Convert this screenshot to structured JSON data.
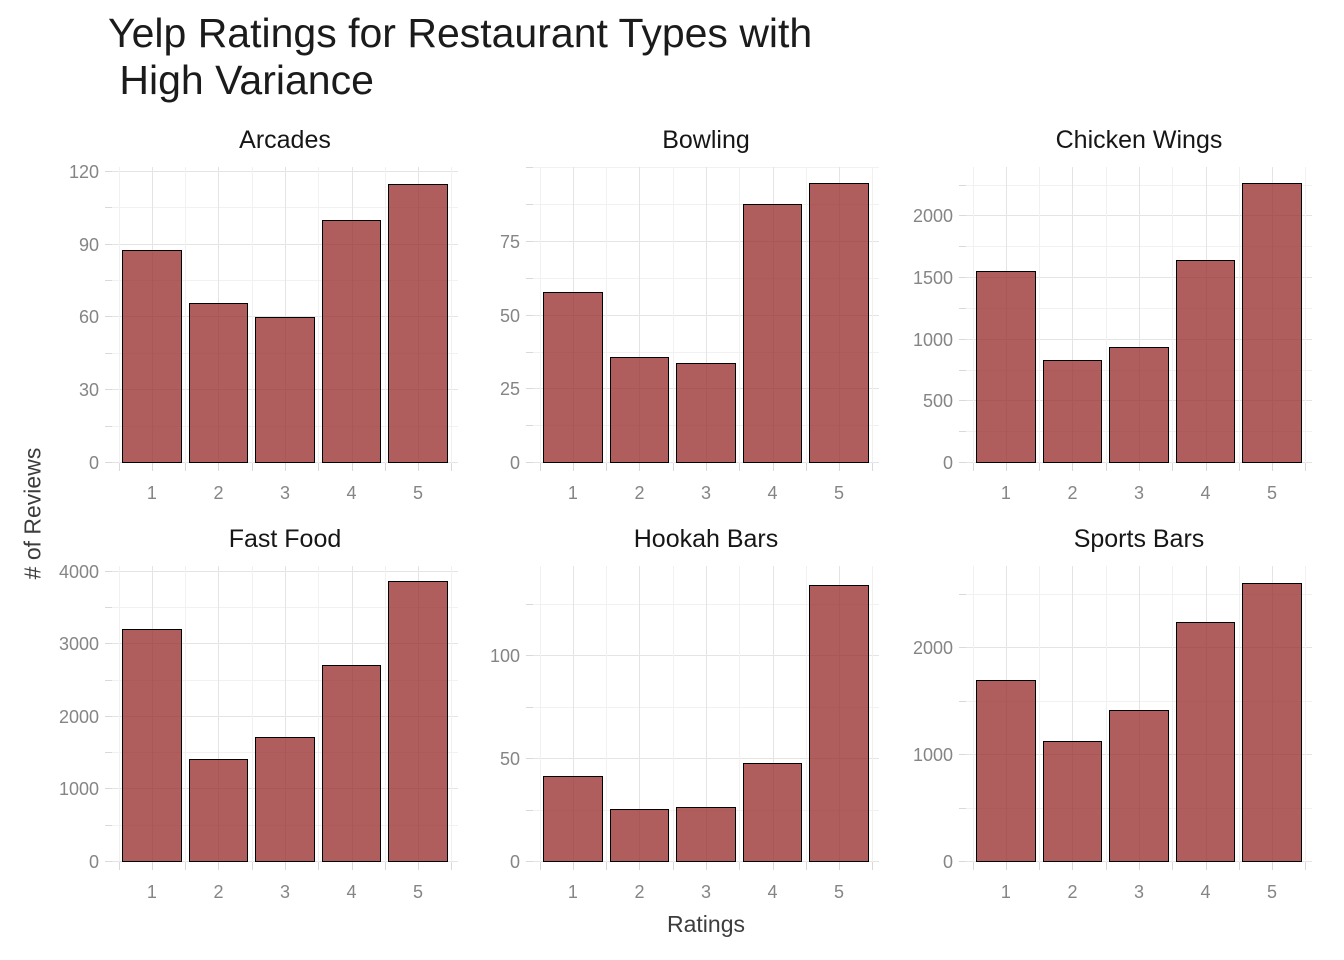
{
  "title": "Yelp Ratings for Restaurant Types with\n High Variance",
  "axes": {
    "x_label": "Ratings",
    "y_label": "# of Reviews"
  },
  "colors": {
    "title_text": "#1b1b1b",
    "facet_title_text": "#161616",
    "axis_title_text": "#3d3d3d",
    "tick_label_text": "#858585",
    "grid_major": "#e4e4e4",
    "grid_minor": "#f1f1f1",
    "tick_mark": "#d9d9d9",
    "bar_fill_rgba": "rgba(153,47,47,0.78)",
    "bar_border": "#000000"
  },
  "chart_data": [
    {
      "type": "bar",
      "title": "Arcades",
      "categories": [
        "1",
        "2",
        "3",
        "4",
        "5"
      ],
      "values": [
        88,
        66,
        60,
        100,
        115
      ],
      "ylim": [
        0,
        122
      ],
      "y_ticks_major": [
        0,
        30,
        60,
        90,
        120
      ],
      "y_ticks_minor": [
        15,
        45,
        75,
        105
      ]
    },
    {
      "type": "bar",
      "title": "Bowling",
      "categories": [
        "1",
        "2",
        "3",
        "4",
        "5"
      ],
      "values": [
        58,
        36,
        34,
        88,
        95
      ],
      "ylim": [
        0,
        100.5
      ],
      "y_ticks_major": [
        0,
        25,
        50,
        75
      ],
      "y_ticks_minor": [
        12.5,
        37.5,
        62.5,
        87.5,
        100
      ]
    },
    {
      "type": "bar",
      "title": "Chicken Wings",
      "categories": [
        "1",
        "2",
        "3",
        "4",
        "5"
      ],
      "values": [
        1560,
        835,
        940,
        1650,
        2270
      ],
      "ylim": [
        0,
        2400
      ],
      "y_ticks_major": [
        0,
        500,
        1000,
        1500,
        2000
      ],
      "y_ticks_minor": [
        250,
        750,
        1250,
        1750,
        2250
      ]
    },
    {
      "type": "bar",
      "title": "Fast Food",
      "categories": [
        "1",
        "2",
        "3",
        "4",
        "5"
      ],
      "values": [
        3210,
        1420,
        1720,
        2720,
        3870
      ],
      "ylim": [
        0,
        4080
      ],
      "y_ticks_major": [
        0,
        1000,
        2000,
        3000,
        4000
      ],
      "y_ticks_minor": [
        500,
        1500,
        2500,
        3500
      ]
    },
    {
      "type": "bar",
      "title": "Hookah Bars",
      "categories": [
        "1",
        "2",
        "3",
        "4",
        "5"
      ],
      "values": [
        42,
        26,
        27,
        48,
        135
      ],
      "ylim": [
        0,
        144
      ],
      "y_ticks_major": [
        0,
        50,
        100
      ],
      "y_ticks_minor": [
        25,
        75,
        125
      ]
    },
    {
      "type": "bar",
      "title": "Sports Bars",
      "categories": [
        "1",
        "2",
        "3",
        "4",
        "5"
      ],
      "values": [
        1700,
        1130,
        1420,
        2250,
        2610
      ],
      "ylim": [
        0,
        2770
      ],
      "y_ticks_major": [
        0,
        1000,
        2000
      ],
      "y_ticks_minor": [
        500,
        1500,
        2500
      ]
    }
  ]
}
